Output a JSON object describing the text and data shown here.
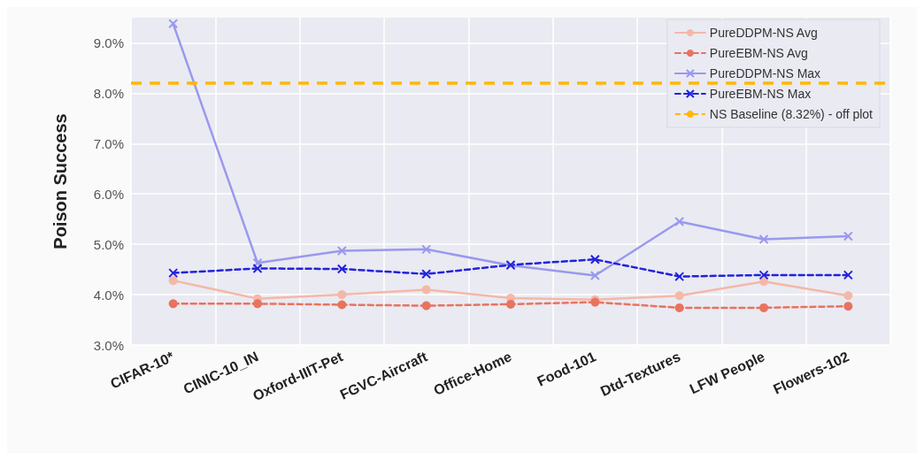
{
  "chart_data": {
    "type": "line",
    "ylabel": "Poison Success",
    "categories": [
      "CIFAR-10*",
      "CINIC-10_IN",
      "Oxford-IIIT-Pet",
      "FGVC-Aircraft",
      "Office-Home",
      "Food-101",
      "Dtd-Textures",
      "LFW People",
      "Flowers-102"
    ],
    "series": [
      {
        "name": "PureDDPM-NS Avg",
        "color": "#f4b8a8",
        "marker": "circle",
        "line_style": "solid",
        "values": [
          4.28,
          3.92,
          4.0,
          4.1,
          3.93,
          3.9,
          3.98,
          4.26,
          3.98
        ]
      },
      {
        "name": "PureEBM-NS Avg",
        "color": "#e8735f",
        "marker": "circle",
        "line_style": "dashed",
        "values": [
          3.82,
          3.82,
          3.8,
          3.78,
          3.81,
          3.85,
          3.74,
          3.74,
          3.77
        ]
      },
      {
        "name": "PureDDPM-NS Max",
        "color": "#9999ee",
        "marker": "cross",
        "line_style": "solid",
        "values": [
          9.38,
          4.63,
          4.87,
          4.9,
          4.58,
          4.38,
          5.45,
          5.1,
          5.16
        ]
      },
      {
        "name": "PureEBM-NS Max",
        "color": "#2222dd",
        "marker": "cross",
        "line_style": "dashed",
        "values": [
          4.43,
          4.52,
          4.51,
          4.41,
          4.59,
          4.7,
          4.36,
          4.39,
          4.39
        ]
      }
    ],
    "ref_lines": [
      {
        "axis": "y",
        "value": 8.2,
        "label": "NS Baseline (8.32%) - off plot",
        "color": "#ffb800",
        "line_style": "dashed"
      }
    ],
    "ylim": [
      3,
      9.5
    ],
    "yticks": [
      {
        "value": 3,
        "label": "3.0%"
      },
      {
        "value": 4,
        "label": "4.0%"
      },
      {
        "value": 5,
        "label": "5.0%"
      },
      {
        "value": 6,
        "label": "6.0%"
      },
      {
        "value": 7,
        "label": "7.0%"
      },
      {
        "value": 8,
        "label": "8.0%"
      },
      {
        "value": 9,
        "label": "9.0%"
      }
    ],
    "grid": true,
    "legend": "top right"
  }
}
